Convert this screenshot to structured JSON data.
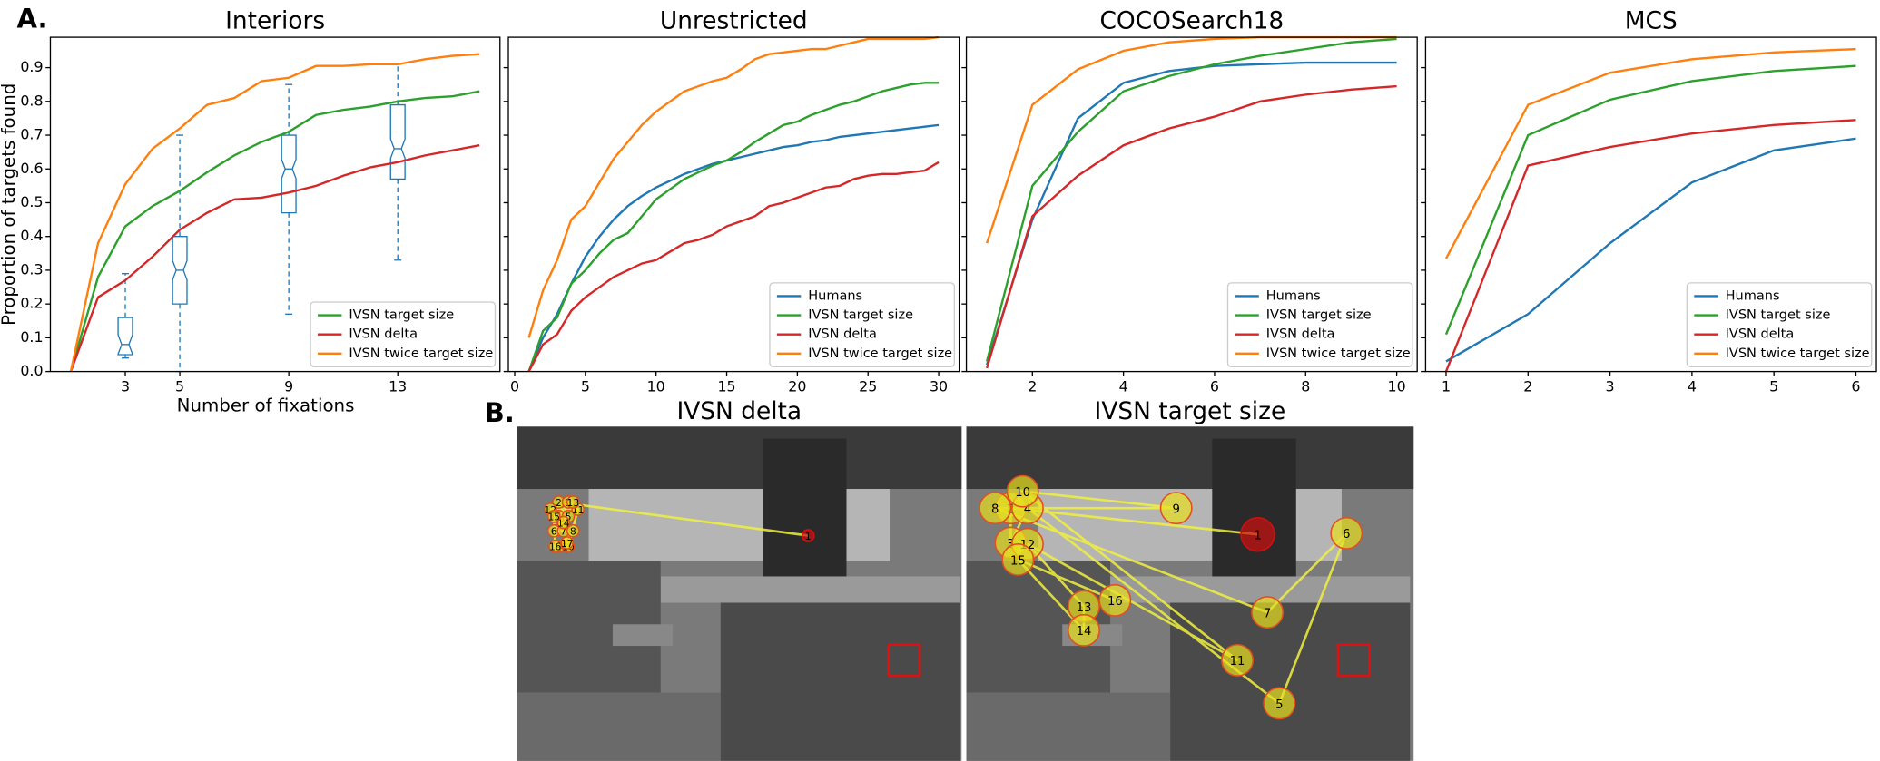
{
  "panel_a": {
    "label": "A."
  },
  "chart_data": [
    {
      "type": "line",
      "title": "Interiors",
      "xlabel": "Number of fixations",
      "ylabel": "Proportion of targets found",
      "x": [
        1,
        2,
        3,
        4,
        5,
        6,
        7,
        8,
        9,
        10,
        11,
        12,
        13,
        14,
        15,
        16
      ],
      "xlim": [
        0.25,
        16.75
      ],
      "xticks": [
        3,
        5,
        9,
        13
      ],
      "ylim": [
        0,
        0.99
      ],
      "yticks": [
        {
          "value": 0,
          "label": "0.0"
        },
        0.1,
        0.2,
        0.3,
        0.4,
        0.5,
        0.6,
        0.7,
        0.8,
        0.9
      ],
      "legend": "lower right",
      "series": [
        {
          "name": "IVSN target size",
          "color": "#2ca02c",
          "values": [
            0,
            0.28,
            0.43,
            0.49,
            0.535,
            0.59,
            0.64,
            0.68,
            0.71,
            0.76,
            0.775,
            0.785,
            0.8,
            0.81,
            0.815,
            0.83
          ]
        },
        {
          "name": "IVSN delta",
          "color": "#d62728",
          "values": [
            0,
            0.22,
            0.27,
            0.34,
            0.42,
            0.47,
            0.51,
            0.515,
            0.53,
            0.55,
            0.58,
            0.605,
            0.62,
            0.64,
            0.655,
            0.67
          ]
        },
        {
          "name": "IVSN twice target size",
          "color": "#ff7f0e",
          "values": [
            0,
            0.38,
            0.555,
            0.66,
            0.72,
            0.79,
            0.81,
            0.86,
            0.87,
            0.905,
            0.905,
            0.91,
            0.91,
            0.925,
            0.935,
            0.94
          ]
        }
      ],
      "boxes": {
        "color": "#1f77b4",
        "items": [
          {
            "x": 3,
            "whislo": 0.04,
            "q1": 0.05,
            "med": 0.08,
            "q3": 0.16,
            "whishi": 0.29
          },
          {
            "x": 5,
            "whislo": 0,
            "q1": 0.2,
            "med": 0.3,
            "q3": 0.4,
            "whishi": 0.7
          },
          {
            "x": 9,
            "whislo": 0.17,
            "q1": 0.47,
            "med": 0.6,
            "q3": 0.7,
            "whishi": 0.85
          },
          {
            "x": 13,
            "whislo": 0.33,
            "q1": 0.57,
            "med": 0.66,
            "q3": 0.79,
            "whishi": 0.91
          }
        ]
      }
    },
    {
      "type": "line",
      "title": "Unrestricted",
      "x": [
        1,
        2,
        3,
        4,
        5,
        6,
        7,
        8,
        9,
        10,
        11,
        12,
        13,
        14,
        15,
        16,
        17,
        18,
        19,
        20,
        21,
        22,
        23,
        24,
        25,
        26,
        27,
        28,
        29,
        30
      ],
      "xlim": [
        -0.45,
        31.45
      ],
      "xticks": [
        0,
        5,
        10,
        15,
        20,
        25,
        30
      ],
      "ylim": [
        0,
        0.99
      ],
      "legend": "lower right",
      "series": [
        {
          "name": "Humans",
          "color": "#1f77b4",
          "values": [
            0,
            0.1,
            0.17,
            0.26,
            0.34,
            0.4,
            0.45,
            0.49,
            0.52,
            0.545,
            0.565,
            0.585,
            0.6,
            0.615,
            0.625,
            0.635,
            0.645,
            0.655,
            0.665,
            0.67,
            0.68,
            0.685,
            0.695,
            0.7,
            0.705,
            0.71,
            0.715,
            0.72,
            0.725,
            0.73
          ]
        },
        {
          "name": "IVSN target size",
          "color": "#2ca02c",
          "values": [
            0,
            0.12,
            0.16,
            0.26,
            0.3,
            0.35,
            0.39,
            0.41,
            0.46,
            0.51,
            0.54,
            0.57,
            0.59,
            0.61,
            0.625,
            0.65,
            0.68,
            0.705,
            0.73,
            0.74,
            0.76,
            0.775,
            0.79,
            0.8,
            0.815,
            0.83,
            0.84,
            0.85,
            0.855,
            0.855
          ]
        },
        {
          "name": "IVSN delta",
          "color": "#d62728",
          "values": [
            0,
            0.08,
            0.11,
            0.18,
            0.22,
            0.25,
            0.28,
            0.3,
            0.32,
            0.33,
            0.355,
            0.38,
            0.39,
            0.405,
            0.43,
            0.445,
            0.46,
            0.49,
            0.5,
            0.515,
            0.53,
            0.545,
            0.55,
            0.57,
            0.58,
            0.585,
            0.585,
            0.59,
            0.595,
            0.62
          ]
        },
        {
          "name": "IVSN twice target size",
          "color": "#ff7f0e",
          "values": [
            0.1,
            0.24,
            0.33,
            0.45,
            0.49,
            0.56,
            0.63,
            0.68,
            0.73,
            0.77,
            0.8,
            0.83,
            0.845,
            0.86,
            0.87,
            0.895,
            0.925,
            0.94,
            0.945,
            0.95,
            0.955,
            0.955,
            0.965,
            0.975,
            0.985,
            0.985,
            0.985,
            0.985,
            0.985,
            0.99
          ]
        }
      ]
    },
    {
      "type": "line",
      "title": "COCOSearch18",
      "x": [
        1,
        2,
        3,
        4,
        5,
        6,
        7,
        8,
        9,
        10
      ],
      "xlim": [
        0.55,
        10.45
      ],
      "xticks": [
        2,
        4,
        6,
        8,
        10
      ],
      "ylim": [
        0,
        0.99
      ],
      "legend": "lower right",
      "series": [
        {
          "name": "Humans",
          "color": "#1f77b4",
          "values": [
            0.02,
            0.45,
            0.75,
            0.855,
            0.89,
            0.905,
            0.91,
            0.915,
            0.915,
            0.915
          ]
        },
        {
          "name": "IVSN target size",
          "color": "#2ca02c",
          "values": [
            0.03,
            0.55,
            0.71,
            0.83,
            0.875,
            0.91,
            0.935,
            0.955,
            0.975,
            0.985
          ]
        },
        {
          "name": "IVSN delta",
          "color": "#d62728",
          "values": [
            0.01,
            0.46,
            0.58,
            0.67,
            0.72,
            0.755,
            0.8,
            0.82,
            0.835,
            0.845
          ]
        },
        {
          "name": "IVSN twice target size",
          "color": "#ff7f0e",
          "values": [
            0.38,
            0.79,
            0.895,
            0.95,
            0.975,
            0.985,
            0.99,
            0.99,
            0.99,
            0.99
          ]
        }
      ]
    },
    {
      "type": "line",
      "title": "MCS",
      "x": [
        1,
        2,
        3,
        4,
        5,
        6
      ],
      "xlim": [
        0.75,
        6.25
      ],
      "xticks": [
        1,
        2,
        3,
        4,
        5,
        6
      ],
      "ylim": [
        0,
        0.99
      ],
      "legend": "lower right",
      "series": [
        {
          "name": "Humans",
          "color": "#1f77b4",
          "values": [
            0.03,
            0.17,
            0.38,
            0.56,
            0.655,
            0.69
          ]
        },
        {
          "name": "IVSN target size",
          "color": "#2ca02c",
          "values": [
            0.11,
            0.7,
            0.805,
            0.86,
            0.89,
            0.905
          ]
        },
        {
          "name": "IVSN delta",
          "color": "#d62728",
          "values": [
            0,
            0.61,
            0.665,
            0.705,
            0.73,
            0.745
          ]
        },
        {
          "name": "IVSN twice target size",
          "color": "#ff7f0e",
          "values": [
            0.335,
            0.79,
            0.885,
            0.925,
            0.945,
            0.955
          ]
        }
      ]
    }
  ],
  "panel_b": {
    "label": "B.",
    "panels": [
      {
        "title": "IVSN delta",
        "fixations": [
          1,
          2,
          3,
          4,
          5,
          6,
          7,
          8,
          9,
          10,
          11,
          12,
          13,
          14,
          15,
          16,
          17
        ]
      },
      {
        "title": "IVSN target size",
        "fixations": [
          1,
          2,
          3,
          4,
          5,
          6,
          7,
          8,
          9,
          10,
          11,
          12,
          13,
          14,
          15,
          16
        ]
      }
    ]
  }
}
